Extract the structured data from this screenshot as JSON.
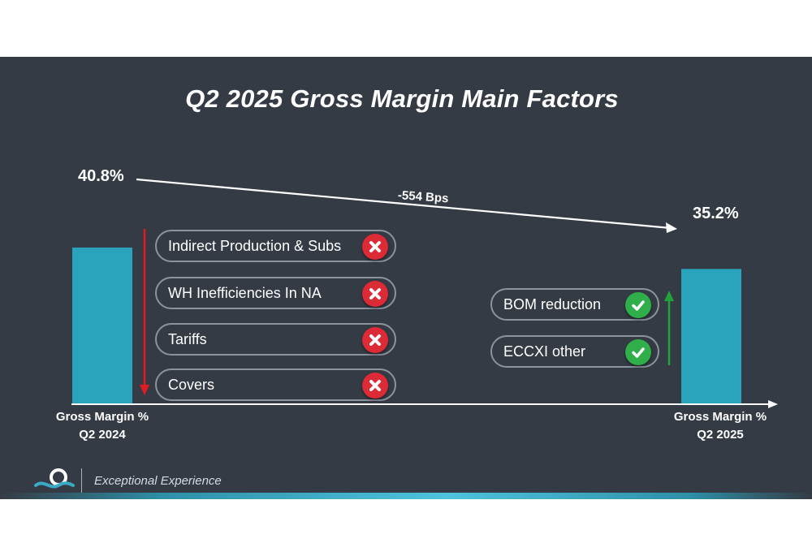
{
  "chart_data": {
    "type": "bar",
    "title": "Q2 2025 Gross Margin Main Factors",
    "categories": [
      "Gross Margin %\nQ2 2024",
      "Gross Margin %\nQ2 2025"
    ],
    "category_lines": [
      [
        "Gross Margin %",
        "Q2 2024"
      ],
      [
        "Gross Margin %",
        "Q2 2025"
      ]
    ],
    "values": [
      40.8,
      35.2
    ],
    "value_labels": [
      "40.8%",
      "35.2%"
    ],
    "change_label": "-554 Bps",
    "ylim": [
      0,
      45
    ],
    "negative_factors": [
      "Indirect Production & Subs",
      "WH Inefficiencies In NA",
      "Tariffs",
      "Covers"
    ],
    "positive_factors": [
      "BOM reduction",
      "ECCXI other"
    ]
  },
  "colors": {
    "bar": "#2aa3bd",
    "background": "#353b44",
    "negative": "#dc2a36",
    "positive": "#2fae4a",
    "arrow_down": "#e01b24",
    "arrow_up": "#1fa33a"
  },
  "footer": {
    "tagline": "Exceptional Experience",
    "logo_icon": "wave-logo-icon"
  }
}
